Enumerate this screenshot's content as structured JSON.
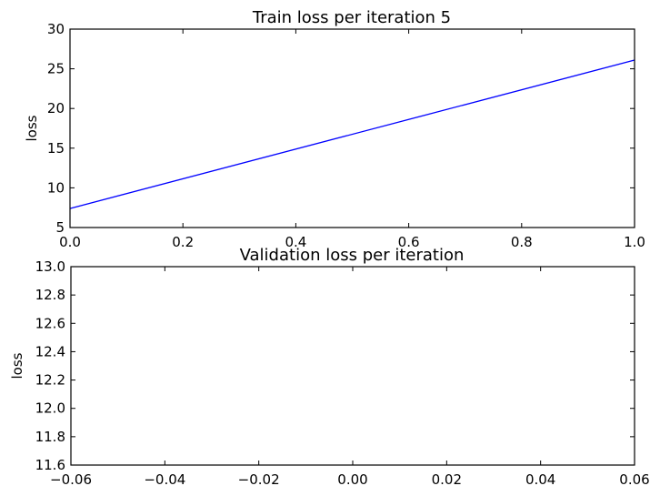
{
  "chart_data": [
    {
      "type": "line",
      "title": "Train loss per iteration 5",
      "xlabel": "",
      "ylabel": "loss",
      "xlim": [
        0.0,
        1.0
      ],
      "ylim": [
        5,
        30
      ],
      "grid": false,
      "x_ticks": [
        "0.0",
        "0.2",
        "0.4",
        "0.6",
        "0.8",
        "1.0"
      ],
      "y_ticks": [
        "5",
        "10",
        "15",
        "20",
        "25",
        "30"
      ],
      "series": [
        {
          "color": "#0000ff",
          "x": [
            0.0,
            1.0
          ],
          "y": [
            7.4,
            26.1
          ]
        }
      ]
    },
    {
      "type": "line",
      "title": "Validation loss per iteration",
      "xlabel": "",
      "ylabel": "loss",
      "xlim": [
        -0.06,
        0.06
      ],
      "ylim": [
        11.6,
        13.0
      ],
      "grid": false,
      "x_ticks": [
        "−0.06",
        "−0.04",
        "−0.02",
        "0.00",
        "0.02",
        "0.04",
        "0.06"
      ],
      "y_ticks": [
        "11.6",
        "11.8",
        "12.0",
        "12.2",
        "12.4",
        "12.6",
        "12.8",
        "13.0"
      ],
      "series": [
        {
          "color": "#0000ff",
          "x": [],
          "y": []
        }
      ]
    }
  ]
}
